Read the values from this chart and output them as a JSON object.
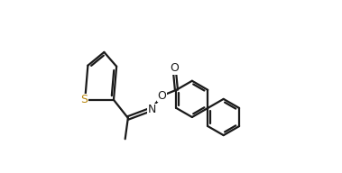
{
  "bg_color": "#ffffff",
  "line_color": "#1a1a1a",
  "S_color": "#b8860b",
  "N_color": "#1a1a1a",
  "O_color": "#1a1a1a",
  "line_width": 1.6,
  "dbo": 0.012,
  "figsize": [
    3.79,
    1.92
  ],
  "dpi": 100,
  "xlim": [
    0.0,
    1.0
  ],
  "ylim": [
    0.05,
    0.95
  ]
}
